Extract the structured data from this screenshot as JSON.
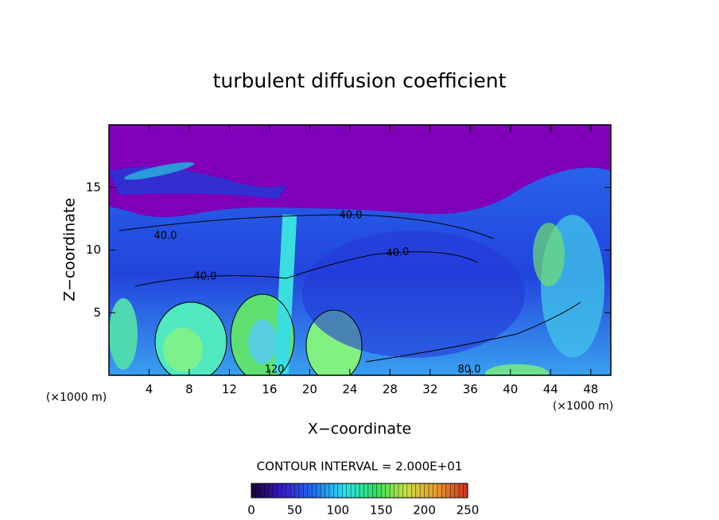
{
  "chart_data": {
    "type": "contour",
    "title": "turbulent diffusion coefficient",
    "x_label": "X−coordinate",
    "y_label": "Z−coordinate",
    "x_unit": "(×1000 m)",
    "xlim": [
      0,
      50
    ],
    "xticks": [
      4,
      8,
      12,
      16,
      20,
      24,
      28,
      32,
      36,
      40,
      44,
      48
    ],
    "ylim": [
      0,
      20
    ],
    "yticks": [
      5,
      10,
      15
    ],
    "contour_interval": "CONTOUR INTERVAL = 2.000E+01",
    "annotations": [
      "40.0",
      "40.0",
      "40.0",
      "40.0",
      "80.0",
      "120"
    ],
    "colorbar": {
      "lim": [
        0,
        250
      ],
      "ticks": [
        0,
        50,
        100,
        150,
        200,
        250
      ],
      "colors": [
        "#1a0033",
        "#3a1cc8",
        "#1f6cf0",
        "#2ce0f0",
        "#30e060",
        "#c8e040",
        "#e89a30",
        "#d03020"
      ]
    }
  }
}
